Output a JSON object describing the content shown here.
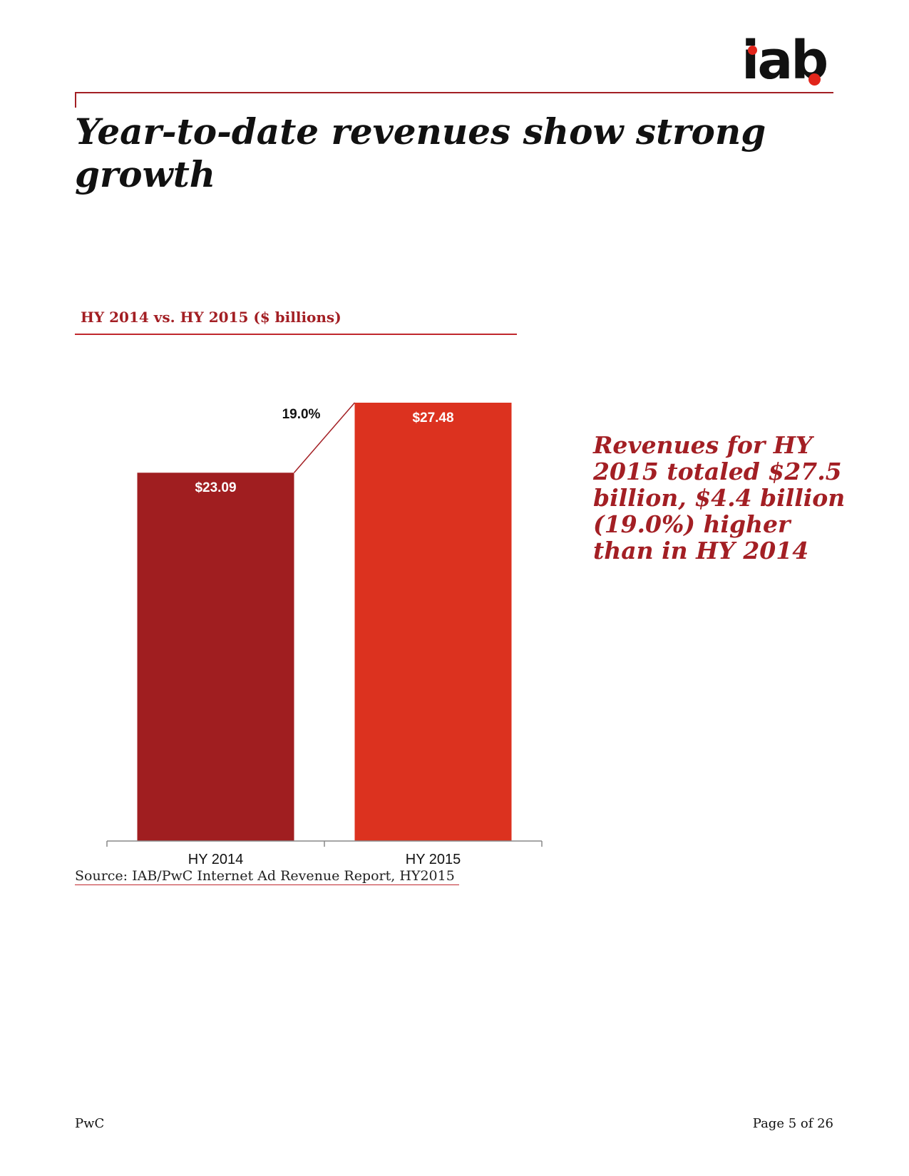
{
  "logo": {
    "text": "iab",
    "dot_color": "#e1251b"
  },
  "page": {
    "title": "Year-to-date revenues show strong growth",
    "callout": "Revenues for HY 2015 totaled $27.5 billion, $4.4 billion (19.0%) higher than in HY 2014",
    "source": "Source: IAB/PwC Internet Ad Revenue Report, HY2015",
    "footer_left": "PwC",
    "footer_right": "Page 5 of 26"
  },
  "chart_data": {
    "type": "bar",
    "title": "HY 2014 vs. HY 2015 ($ billions)",
    "categories": [
      "HY 2014",
      "HY 2015"
    ],
    "values": [
      23.09,
      27.48
    ],
    "value_labels": [
      "$23.09",
      "$27.48"
    ],
    "colors": [
      "#a01e20",
      "#dc321f"
    ],
    "growth_label": "19.0%",
    "xlabel": "",
    "ylabel": "",
    "ylim": [
      0,
      27.48
    ],
    "grid": false,
    "legend": "none"
  }
}
